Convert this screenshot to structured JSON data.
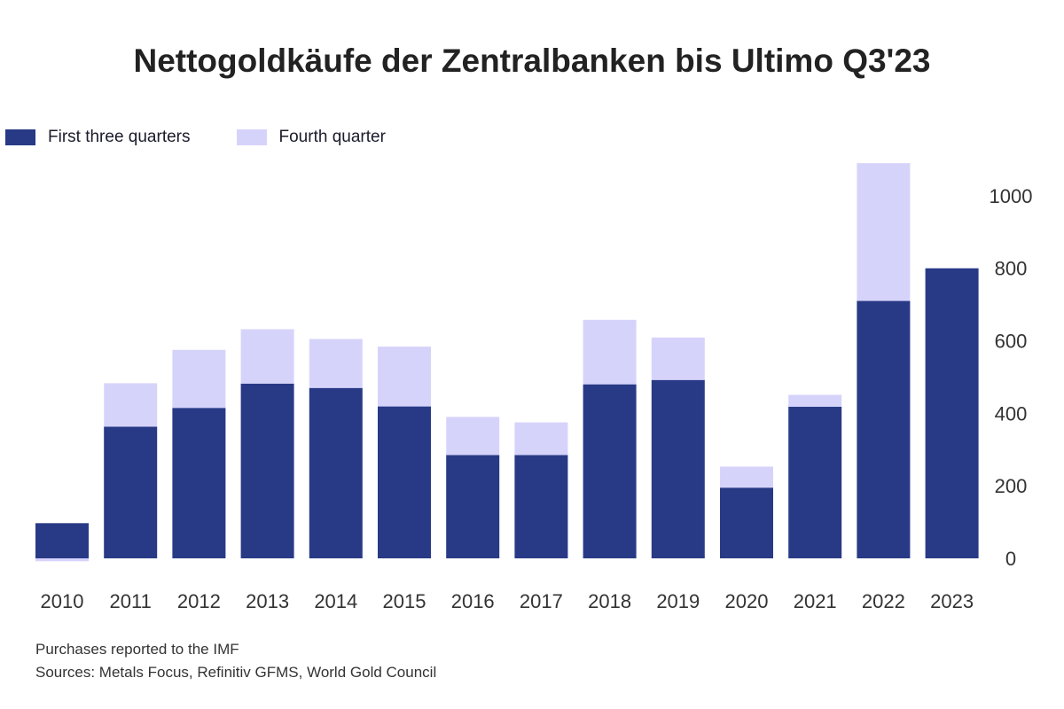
{
  "title": "Nettogoldkäufe der Zentralbanken bis Ultimo Q3'23",
  "legend": [
    {
      "label": "First three quarters",
      "color": "#283a86"
    },
    {
      "label": "Fourth quarter",
      "color": "#d6d3fb"
    }
  ],
  "footnote": {
    "line1": "Purchases reported to the IMF",
    "line2": "Sources: Metals Focus, Refinitiv GFMS, World Gold Council"
  },
  "chart_data": {
    "type": "bar",
    "stacked": true,
    "categories": [
      "2010",
      "2011",
      "2012",
      "2013",
      "2014",
      "2015",
      "2016",
      "2017",
      "2018",
      "2019",
      "2020",
      "2021",
      "2022",
      "2023"
    ],
    "series": [
      {
        "name": "First three quarters",
        "color": "#283a86",
        "values": [
          97,
          363,
          415,
          482,
          470,
          419,
          285,
          285,
          480,
          492,
          195,
          418,
          710,
          800
        ]
      },
      {
        "name": "Fourth quarter",
        "color": "#d6d3fb",
        "values": [
          -8,
          120,
          160,
          150,
          135,
          165,
          105,
          90,
          178,
          117,
          58,
          33,
          380,
          0
        ]
      }
    ],
    "ylim": [
      0,
      1100
    ],
    "yticks": [
      0,
      200,
      400,
      600,
      800,
      1000
    ],
    "yaxis_position": "right",
    "grid": false,
    "legend_position": "top-left"
  }
}
